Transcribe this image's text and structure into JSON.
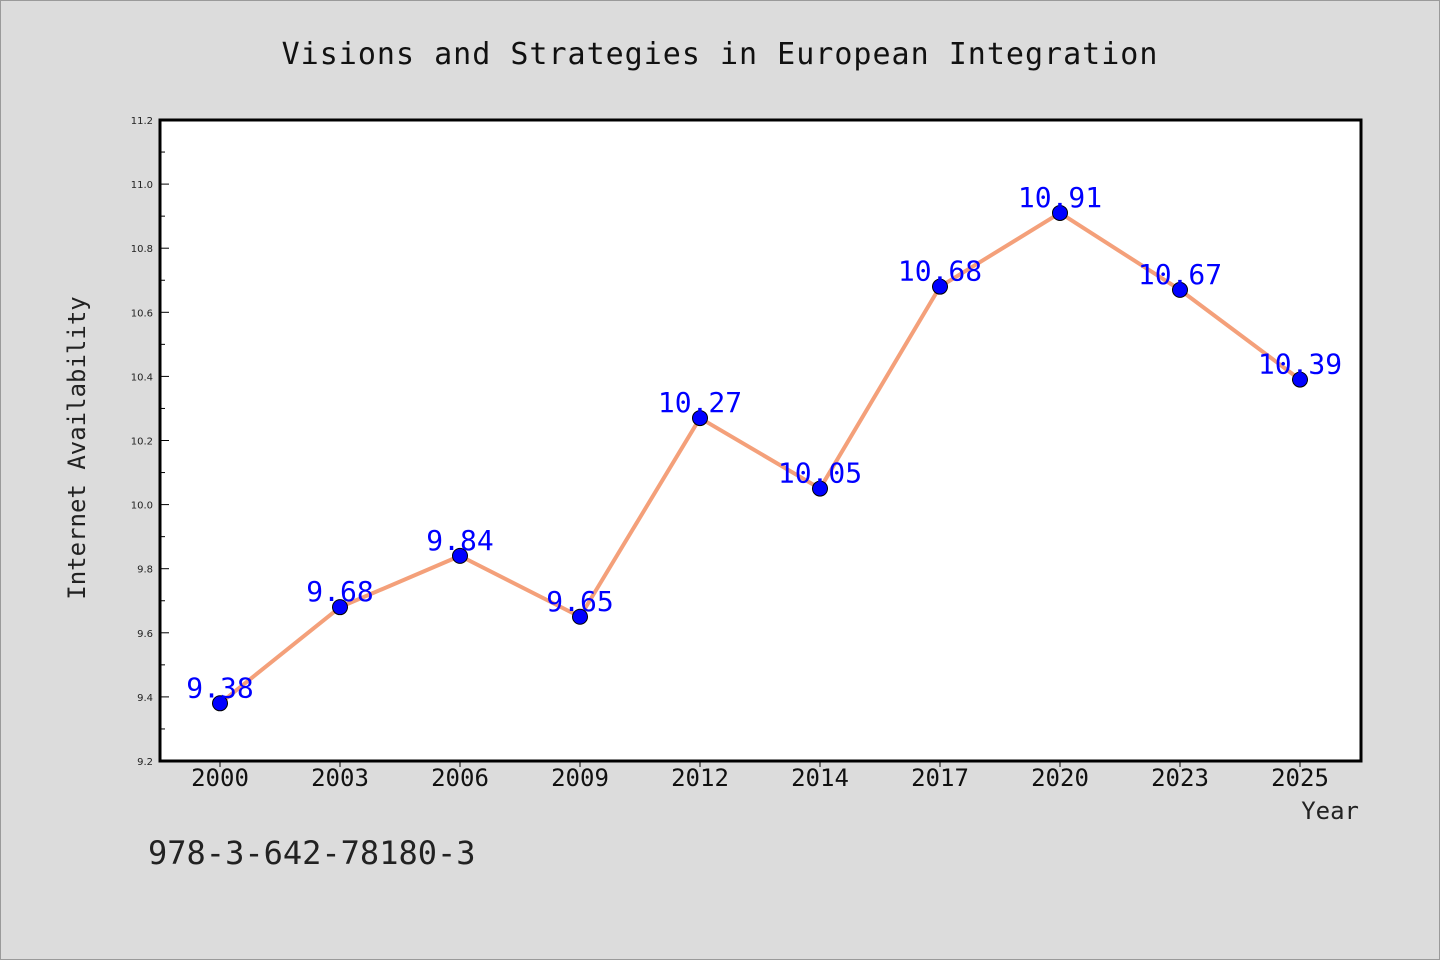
{
  "chart_data": {
    "type": "line",
    "title": "Visions and Strategies in European Integration",
    "xlabel": "Year",
    "ylabel": "Internet Availability",
    "categories": [
      "2000",
      "2003",
      "2006",
      "2009",
      "2012",
      "2014",
      "2017",
      "2020",
      "2023",
      "2025"
    ],
    "series": [
      {
        "values": [
          9.38,
          9.68,
          9.84,
          9.65,
          10.27,
          10.05,
          10.68,
          10.91,
          10.67,
          10.39
        ],
        "data_labels": [
          "9.38",
          "9.68",
          "9.84",
          "9.65",
          "10.27",
          "10.05",
          "10.68",
          "10.91",
          "10.67",
          "10.39"
        ],
        "line_color": "#f4a07a",
        "marker_color": "#0000ff"
      }
    ],
    "ylim": [
      9.2,
      11.2
    ],
    "yticks": [
      "9.2",
      "9.4",
      "9.6",
      "9.8",
      "10.0",
      "10.2",
      "10.4",
      "10.6",
      "10.8",
      "11.0",
      "11.2"
    ],
    "grid": false,
    "legend": "none"
  },
  "annotation": "978-3-642-78180-3",
  "colors": {
    "background": "#dcdcdc",
    "plot_background": "#ffffff"
  }
}
